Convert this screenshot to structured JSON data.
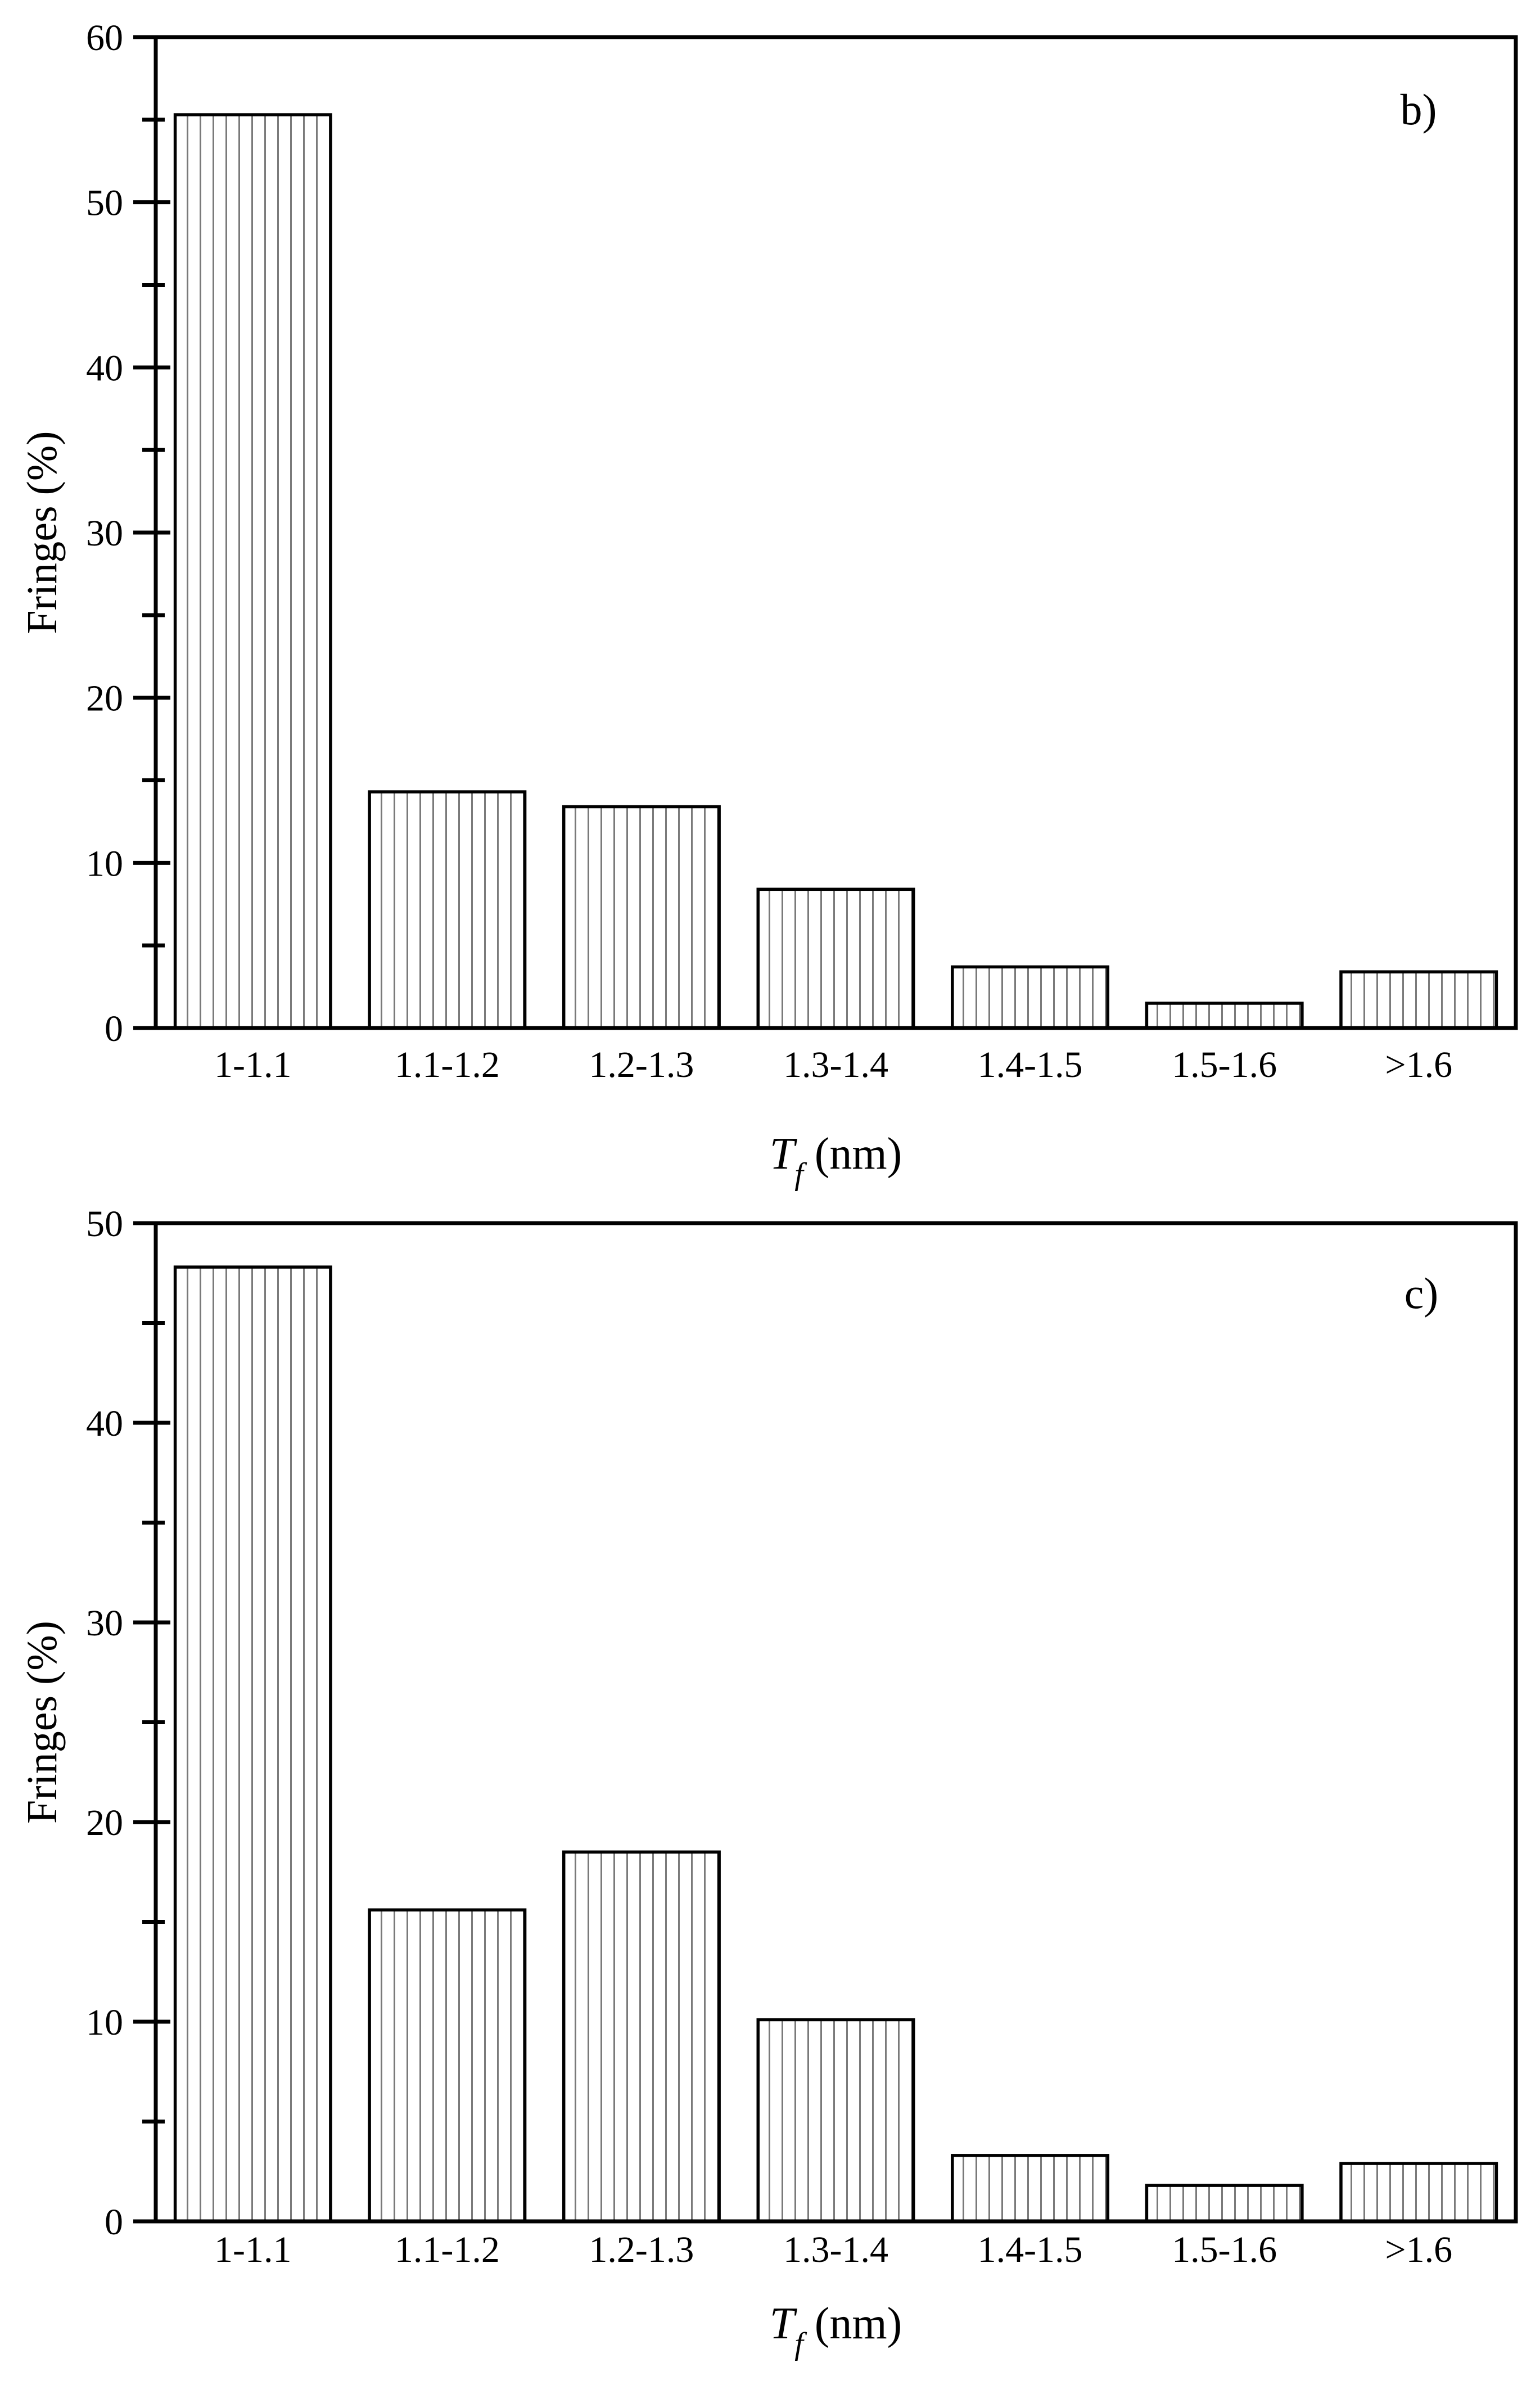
{
  "figure": {
    "background": "#ffffff",
    "ink_color": "#000000",
    "hatch_color": "#7a7a7a",
    "bar_fill": "#ffffff"
  },
  "chart_data": [
    {
      "type": "bar",
      "panel_label": "b)",
      "categories": [
        "1-1.1",
        "1.1-1.2",
        "1.2-1.3",
        "1.3-1.4",
        "1.4-1.5",
        "1.5-1.6",
        ">1.6"
      ],
      "values": [
        55.3,
        14.3,
        13.4,
        8.4,
        3.7,
        1.5,
        3.4
      ],
      "title": "",
      "xlabel_italic": "T",
      "xlabel_subscript": "f",
      "xlabel_unit": " (nm)",
      "ylabel": "Fringes (%)",
      "ylim": [
        0,
        60
      ],
      "ytick_step": 10,
      "yminor_step": 5,
      "ytick_labels": [
        "0",
        "10",
        "20",
        "30",
        "40",
        "50",
        "60"
      ],
      "grid": false,
      "legend": false,
      "bar_style": "white fill with vertical line hatch, black edges"
    },
    {
      "type": "bar",
      "panel_label": "c)",
      "categories": [
        "1-1.1",
        "1.1-1.2",
        "1.2-1.3",
        "1.3-1.4",
        "1.4-1.5",
        "1.5-1.6",
        ">1.6"
      ],
      "values": [
        47.8,
        15.6,
        18.5,
        10.1,
        3.3,
        1.8,
        2.9
      ],
      "title": "",
      "xlabel_italic": "T",
      "xlabel_subscript": "f",
      "xlabel_unit": " (nm)",
      "ylabel": "Fringes (%)",
      "ylim": [
        0,
        50
      ],
      "ytick_step": 10,
      "yminor_step": 5,
      "ytick_labels": [
        "0",
        "10",
        "20",
        "30",
        "40",
        "50"
      ],
      "grid": false,
      "legend": false,
      "bar_style": "white fill with vertical line hatch, black edges"
    }
  ]
}
